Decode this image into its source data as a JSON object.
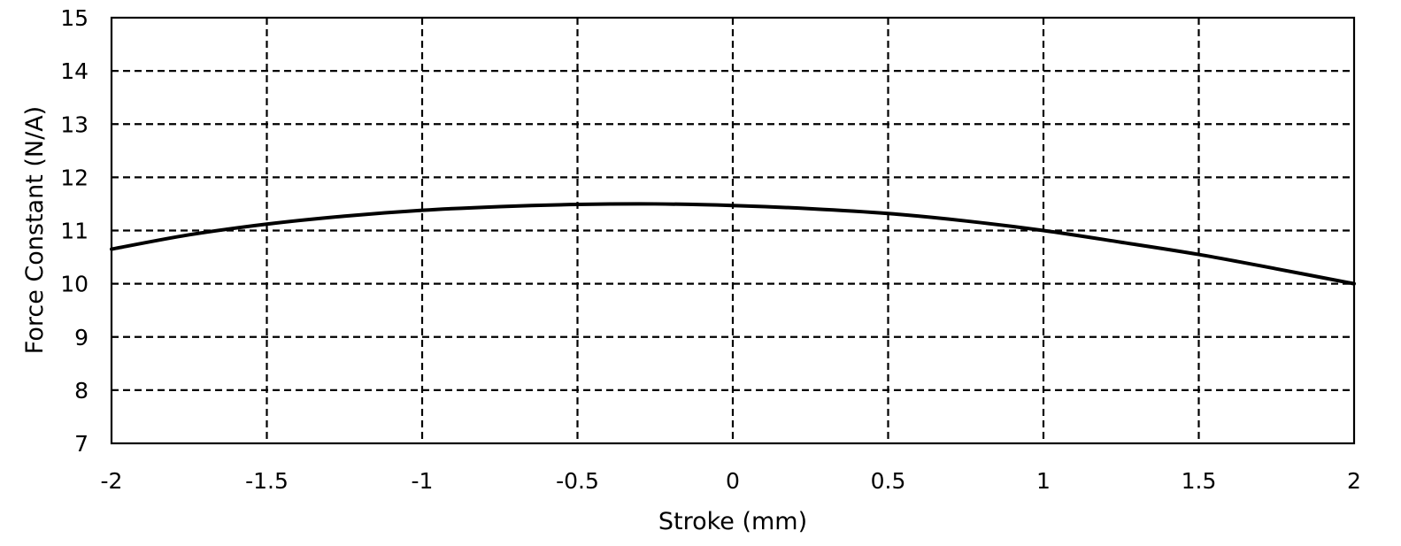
{
  "chart_data": {
    "type": "line",
    "title": "",
    "xlabel": "Stroke (mm)",
    "ylabel": "Force Constant (N/A)",
    "xlim": [
      -2,
      2
    ],
    "ylim": [
      7,
      15
    ],
    "grid": true,
    "x_ticks": [
      "-2",
      "-1.5",
      "-1",
      "-0.5",
      "0",
      "0.5",
      "1",
      "1.5",
      "2"
    ],
    "y_ticks": [
      "7",
      "8",
      "9",
      "10",
      "11",
      "12",
      "13",
      "14",
      "15"
    ],
    "series": [
      {
        "color": "#000000",
        "x": [
          -2,
          -1.75,
          -1.5,
          -1.25,
          -1,
          -0.75,
          -0.5,
          -0.25,
          0,
          0.25,
          0.5,
          0.75,
          1,
          1.25,
          1.5,
          1.75,
          2
        ],
        "y": [
          10.65,
          10.92,
          11.12,
          11.27,
          11.38,
          11.45,
          11.49,
          11.5,
          11.47,
          11.41,
          11.32,
          11.18,
          11.0,
          10.78,
          10.55,
          10.28,
          10.0
        ]
      }
    ]
  }
}
